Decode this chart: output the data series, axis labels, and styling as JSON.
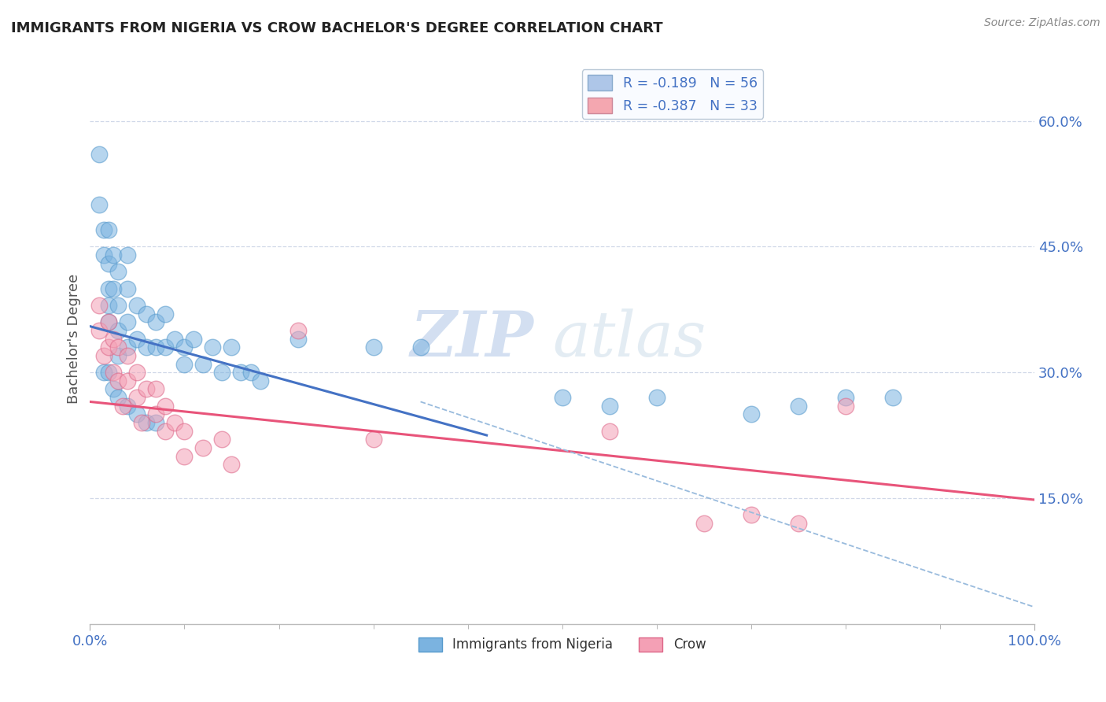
{
  "title": "IMMIGRANTS FROM NIGERIA VS CROW BACHELOR'S DEGREE CORRELATION CHART",
  "source_text": "Source: ZipAtlas.com",
  "ylabel": "Bachelor's Degree",
  "y_ticks": [
    0.15,
    0.3,
    0.45,
    0.6
  ],
  "x_lim": [
    0.0,
    1.0
  ],
  "y_lim": [
    0.0,
    0.68
  ],
  "legend_entries": [
    {
      "label": "R = -0.189   N = 56",
      "color": "#aec6e8"
    },
    {
      "label": "R = -0.387   N = 33",
      "color": "#f4a7b0"
    }
  ],
  "watermark_zip": "ZIP",
  "watermark_atlas": "atlas",
  "blue_scatter_x": [
    0.01,
    0.01,
    0.015,
    0.015,
    0.02,
    0.02,
    0.02,
    0.02,
    0.02,
    0.025,
    0.025,
    0.03,
    0.03,
    0.03,
    0.03,
    0.04,
    0.04,
    0.04,
    0.04,
    0.05,
    0.05,
    0.06,
    0.06,
    0.07,
    0.07,
    0.08,
    0.08,
    0.09,
    0.1,
    0.1,
    0.11,
    0.12,
    0.13,
    0.14,
    0.15,
    0.16,
    0.17,
    0.18,
    0.22,
    0.3,
    0.35,
    0.5,
    0.55,
    0.6,
    0.7,
    0.75,
    0.8,
    0.85,
    0.015,
    0.02,
    0.025,
    0.03,
    0.04,
    0.05,
    0.06,
    0.07
  ],
  "blue_scatter_y": [
    0.56,
    0.5,
    0.47,
    0.44,
    0.47,
    0.43,
    0.4,
    0.38,
    0.36,
    0.44,
    0.4,
    0.42,
    0.38,
    0.35,
    0.32,
    0.44,
    0.4,
    0.36,
    0.33,
    0.38,
    0.34,
    0.37,
    0.33,
    0.36,
    0.33,
    0.37,
    0.33,
    0.34,
    0.33,
    0.31,
    0.34,
    0.31,
    0.33,
    0.3,
    0.33,
    0.3,
    0.3,
    0.29,
    0.34,
    0.33,
    0.33,
    0.27,
    0.26,
    0.27,
    0.25,
    0.26,
    0.27,
    0.27,
    0.3,
    0.3,
    0.28,
    0.27,
    0.26,
    0.25,
    0.24,
    0.24
  ],
  "pink_scatter_x": [
    0.01,
    0.01,
    0.015,
    0.02,
    0.02,
    0.025,
    0.025,
    0.03,
    0.03,
    0.035,
    0.04,
    0.04,
    0.05,
    0.05,
    0.055,
    0.06,
    0.07,
    0.07,
    0.08,
    0.08,
    0.09,
    0.1,
    0.1,
    0.12,
    0.14,
    0.15,
    0.22,
    0.3,
    0.55,
    0.65,
    0.7,
    0.75,
    0.8
  ],
  "pink_scatter_y": [
    0.38,
    0.35,
    0.32,
    0.36,
    0.33,
    0.34,
    0.3,
    0.33,
    0.29,
    0.26,
    0.32,
    0.29,
    0.3,
    0.27,
    0.24,
    0.28,
    0.28,
    0.25,
    0.26,
    0.23,
    0.24,
    0.23,
    0.2,
    0.21,
    0.22,
    0.19,
    0.35,
    0.22,
    0.23,
    0.12,
    0.13,
    0.12,
    0.26
  ],
  "blue_line_x": [
    0.0,
    0.42
  ],
  "blue_line_y": [
    0.355,
    0.225
  ],
  "pink_line_x": [
    0.0,
    1.0
  ],
  "pink_line_y": [
    0.265,
    0.148
  ],
  "dash_line_x": [
    0.35,
    1.0
  ],
  "dash_line_y": [
    0.265,
    0.02
  ],
  "blue_dot_color": "#7bb3e0",
  "pink_dot_color": "#f4a0b5",
  "blue_line_color": "#4472c4",
  "pink_line_color": "#e8547a",
  "dash_line_color": "#99bbdd",
  "title_color": "#222222",
  "axis_tick_color": "#4472c4",
  "grid_color": "#d0d8e8",
  "background_color": "#ffffff"
}
